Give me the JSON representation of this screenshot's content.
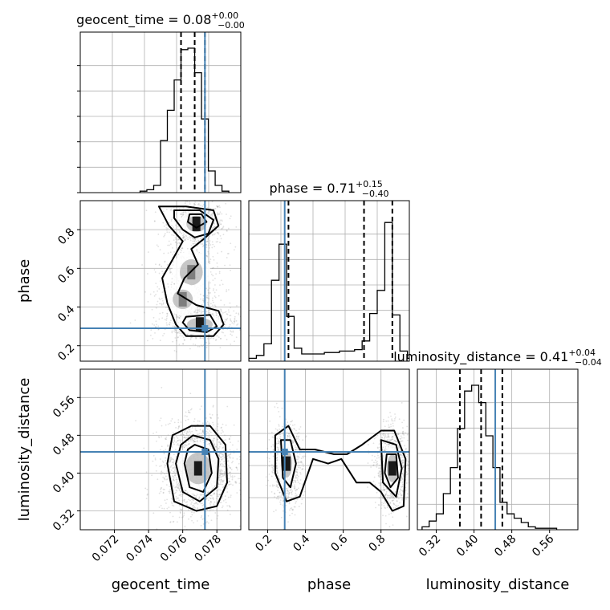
{
  "chart_data": {
    "type": "corner",
    "parameters": [
      "geocent_time",
      "phase",
      "luminosity_distance"
    ],
    "truths": {
      "geocent_time": 0.0773,
      "phase": 0.29,
      "luminosity_distance": 0.445
    },
    "colors": {
      "truth": "#4682b4",
      "hist": "#000000",
      "grid": "#b0b0b0",
      "scatter": "#888888"
    },
    "grid": true,
    "panels": [
      {
        "id": "hist-geocent_time",
        "kind": "histogram",
        "parameter": "geocent_time",
        "title": {
          "base": "geocent_time = 0.08",
          "sup": "+0.00",
          "sub": "−0.00"
        },
        "xlim": [
          0.07,
          0.0794
        ],
        "ylim": [
          0,
          1.0
        ],
        "ytick_count": 6,
        "bins_x0": 0.0735,
        "bin_width": 0.0004,
        "counts": [
          0.01,
          0.02,
          0.05,
          0.36,
          0.57,
          0.78,
          0.99,
          1.0,
          0.83,
          0.51,
          0.15,
          0.05,
          0.01
        ],
        "quantiles": [
          0.0759,
          0.0767,
          0.0773
        ],
        "truth": 0.0773,
        "xticks": []
      },
      {
        "id": "scatter-geocent_time-phase",
        "kind": "density2d",
        "x_parameter": "geocent_time",
        "y_parameter": "phase",
        "xlim": [
          0.07,
          0.0794
        ],
        "ylim": [
          0.12,
          0.95
        ],
        "xticks": [],
        "yticks": [
          0.2,
          0.4,
          0.6,
          0.8
        ],
        "ytick_labels": [
          "0.2",
          "0.4",
          "0.6",
          "0.8"
        ],
        "ylabel": "phase",
        "truth": [
          0.0773,
          0.29
        ],
        "modes": [
          {
            "x": 0.0768,
            "y": 0.83,
            "sx": 0.0007,
            "sy": 0.05,
            "w": 0.38
          },
          {
            "x": 0.0765,
            "y": 0.58,
            "sx": 0.0008,
            "sy": 0.08,
            "w": 0.18
          },
          {
            "x": 0.077,
            "y": 0.31,
            "sx": 0.0009,
            "sy": 0.04,
            "w": 0.32
          },
          {
            "x": 0.076,
            "y": 0.44,
            "sx": 0.0007,
            "sy": 0.06,
            "w": 0.12
          }
        ],
        "contours": [
          [
            [
              0.0746,
              0.92
            ],
            [
              0.0762,
              0.92
            ],
            [
              0.0778,
              0.9
            ],
            [
              0.0781,
              0.82
            ],
            [
              0.0772,
              0.75
            ],
            [
              0.0765,
              0.7
            ],
            [
              0.0769,
              0.62
            ],
            [
              0.0761,
              0.55
            ],
            [
              0.0757,
              0.47
            ],
            [
              0.0768,
              0.41
            ],
            [
              0.0781,
              0.38
            ],
            [
              0.0784,
              0.31
            ],
            [
              0.0778,
              0.25
            ],
            [
              0.0762,
              0.25
            ],
            [
              0.0756,
              0.31
            ],
            [
              0.0751,
              0.42
            ],
            [
              0.0748,
              0.55
            ],
            [
              0.0755,
              0.66
            ],
            [
              0.076,
              0.74
            ],
            [
              0.0752,
              0.82
            ],
            [
              0.0746,
              0.92
            ]
          ],
          [
            [
              0.0755,
              0.9
            ],
            [
              0.077,
              0.9
            ],
            [
              0.0778,
              0.85
            ],
            [
              0.0775,
              0.78
            ],
            [
              0.0767,
              0.76
            ],
            [
              0.076,
              0.8
            ],
            [
              0.0755,
              0.86
            ],
            [
              0.0755,
              0.9
            ]
          ],
          [
            [
              0.0762,
              0.35
            ],
            [
              0.0776,
              0.36
            ],
            [
              0.078,
              0.3
            ],
            [
              0.0774,
              0.27
            ],
            [
              0.0764,
              0.28
            ],
            [
              0.076,
              0.32
            ],
            [
              0.0762,
              0.35
            ]
          ],
          [
            [
              0.0764,
              0.88
            ],
            [
              0.0771,
              0.88
            ],
            [
              0.0774,
              0.84
            ],
            [
              0.0768,
              0.81
            ],
            [
              0.0763,
              0.84
            ],
            [
              0.0764,
              0.88
            ]
          ]
        ]
      },
      {
        "id": "hist-phase",
        "kind": "histogram",
        "parameter": "phase",
        "title": {
          "base": "phase = 0.71",
          "sup": "+0.15",
          "sub": "−0.40"
        },
        "xlim": [
          0.1,
          0.95
        ],
        "ylim": [
          0,
          1.0
        ],
        "ytick_count": 6,
        "bins_x0": 0.1,
        "bin_width": 0.04,
        "counts": [
          0.02,
          0.04,
          0.12,
          0.56,
          0.81,
          0.31,
          0.09,
          0.05,
          0.05,
          0.05,
          0.06,
          0.06,
          0.07,
          0.07,
          0.08,
          0.14,
          0.33,
          0.49,
          0.96,
          0.32,
          0.07,
          0.02
        ],
        "quantiles": [
          0.31,
          0.71,
          0.86
        ],
        "truth": 0.29,
        "xticks": []
      },
      {
        "id": "scatter-geocent_time-luminosity_distance",
        "kind": "density2d",
        "x_parameter": "geocent_time",
        "y_parameter": "luminosity_distance",
        "xlim": [
          0.07,
          0.0794
        ],
        "ylim": [
          0.28,
          0.62
        ],
        "xticks": [
          0.072,
          0.074,
          0.076,
          0.078
        ],
        "xtick_labels": [
          "0.072",
          "0.074",
          "0.076",
          "0.078"
        ],
        "yticks": [
          0.32,
          0.4,
          0.48,
          0.56
        ],
        "ytick_labels": [
          "0.32",
          "0.40",
          "0.48",
          "0.56"
        ],
        "xlabel": "geocent_time",
        "ylabel": "luminosity_distance",
        "truth": [
          0.0773,
          0.445
        ],
        "modes": [
          {
            "x": 0.0769,
            "y": 0.41,
            "sx": 0.0009,
            "sy": 0.04,
            "w": 1.0
          }
        ],
        "contours": [
          [
            [
              0.0765,
              0.5
            ],
            [
              0.0776,
              0.5
            ],
            [
              0.0785,
              0.46
            ],
            [
              0.0786,
              0.38
            ],
            [
              0.078,
              0.33
            ],
            [
              0.0768,
              0.32
            ],
            [
              0.0755,
              0.34
            ],
            [
              0.0751,
              0.42
            ],
            [
              0.0754,
              0.48
            ],
            [
              0.0765,
              0.5
            ]
          ],
          [
            [
              0.0766,
              0.48
            ],
            [
              0.0776,
              0.47
            ],
            [
              0.0781,
              0.43
            ],
            [
              0.078,
              0.37
            ],
            [
              0.077,
              0.34
            ],
            [
              0.076,
              0.36
            ],
            [
              0.0756,
              0.42
            ],
            [
              0.0759,
              0.46
            ],
            [
              0.0766,
              0.48
            ]
          ],
          [
            [
              0.0767,
              0.46
            ],
            [
              0.0775,
              0.45
            ],
            [
              0.0777,
              0.4
            ],
            [
              0.0772,
              0.36
            ],
            [
              0.0764,
              0.37
            ],
            [
              0.0761,
              0.42
            ],
            [
              0.0763,
              0.45
            ],
            [
              0.0767,
              0.46
            ]
          ]
        ]
      },
      {
        "id": "scatter-phase-luminosity_distance",
        "kind": "density2d",
        "x_parameter": "phase",
        "y_parameter": "luminosity_distance",
        "xlim": [
          0.1,
          0.95
        ],
        "ylim": [
          0.28,
          0.62
        ],
        "xticks": [
          0.2,
          0.4,
          0.6,
          0.8
        ],
        "xtick_labels": [
          "0.2",
          "0.4",
          "0.6",
          "0.8"
        ],
        "yticks": [],
        "xlabel": "phase",
        "truth": [
          0.29,
          0.445
        ],
        "modes": [
          {
            "x": 0.3,
            "y": 0.42,
            "sx": 0.035,
            "sy": 0.035,
            "w": 0.45
          },
          {
            "x": 0.86,
            "y": 0.41,
            "sx": 0.035,
            "sy": 0.035,
            "w": 0.55
          }
        ],
        "contours": [
          [
            [
              0.24,
              0.48
            ],
            [
              0.31,
              0.5
            ],
            [
              0.37,
              0.45
            ],
            [
              0.45,
              0.45
            ],
            [
              0.55,
              0.44
            ],
            [
              0.62,
              0.44
            ],
            [
              0.7,
              0.46
            ],
            [
              0.8,
              0.49
            ],
            [
              0.87,
              0.49
            ],
            [
              0.93,
              0.43
            ],
            [
              0.92,
              0.33
            ],
            [
              0.86,
              0.32
            ],
            [
              0.8,
              0.36
            ],
            [
              0.74,
              0.38
            ],
            [
              0.67,
              0.38
            ],
            [
              0.59,
              0.43
            ],
            [
              0.52,
              0.42
            ],
            [
              0.44,
              0.43
            ],
            [
              0.37,
              0.35
            ],
            [
              0.3,
              0.34
            ],
            [
              0.24,
              0.4
            ],
            [
              0.24,
              0.48
            ]
          ],
          [
            [
              0.27,
              0.47
            ],
            [
              0.32,
              0.47
            ],
            [
              0.35,
              0.42
            ],
            [
              0.32,
              0.37
            ],
            [
              0.28,
              0.39
            ],
            [
              0.27,
              0.47
            ]
          ],
          [
            [
              0.8,
              0.47
            ],
            [
              0.88,
              0.46
            ],
            [
              0.91,
              0.41
            ],
            [
              0.88,
              0.35
            ],
            [
              0.81,
              0.38
            ],
            [
              0.8,
              0.47
            ]
          ],
          [
            [
              0.83,
              0.44
            ],
            [
              0.88,
              0.44
            ],
            [
              0.89,
              0.39
            ],
            [
              0.85,
              0.37
            ],
            [
              0.82,
              0.4
            ],
            [
              0.83,
              0.44
            ]
          ]
        ]
      },
      {
        "id": "hist-luminosity_distance",
        "kind": "histogram",
        "parameter": "luminosity_distance",
        "title": {
          "base": "luminosity_distance = 0.41",
          "sup": "+0.04",
          "sub": "−0.04"
        },
        "xlim": [
          0.28,
          0.62
        ],
        "ylim": [
          0,
          1.0
        ],
        "ytick_count": 6,
        "bins_x0": 0.29,
        "bin_width": 0.015,
        "counts": [
          0.02,
          0.06,
          0.11,
          0.25,
          0.43,
          0.7,
          0.96,
          1.0,
          0.88,
          0.65,
          0.43,
          0.19,
          0.11,
          0.08,
          0.05,
          0.02,
          0.01,
          0.01,
          0.01
        ],
        "quantiles": [
          0.37,
          0.415,
          0.46
        ],
        "truth": 0.445,
        "xticks": [
          0.32,
          0.4,
          0.48,
          0.56
        ],
        "xtick_labels": [
          "0.32",
          "0.40",
          "0.48",
          "0.56"
        ],
        "xlabel": "luminosity_distance"
      }
    ]
  }
}
